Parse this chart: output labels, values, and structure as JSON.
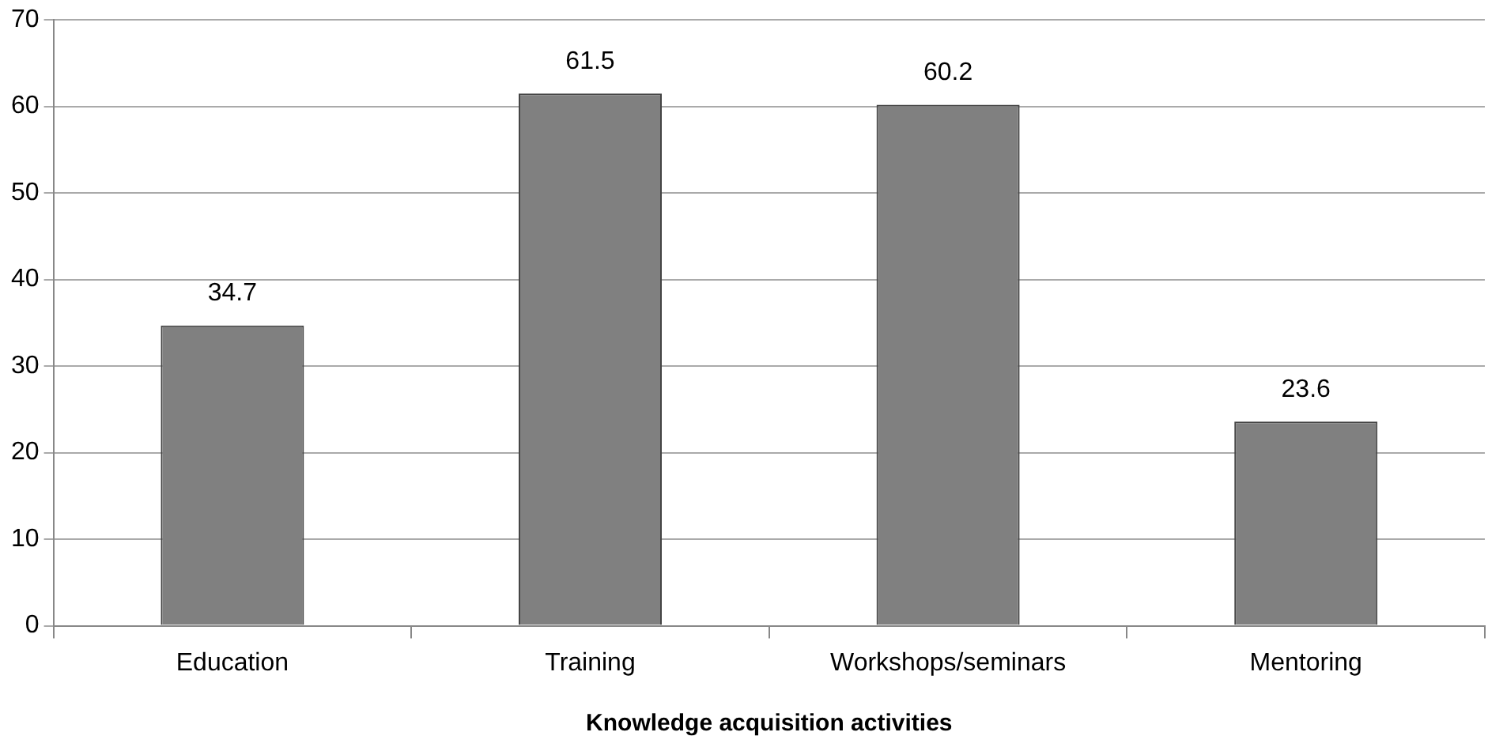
{
  "chart_data": {
    "type": "bar",
    "xlabel": "Knowledge acquisition activities",
    "categories": [
      "Education",
      "Training",
      "Workshops/seminars",
      "Mentoring"
    ],
    "values": [
      34.7,
      61.5,
      60.2,
      23.6
    ],
    "color": "#808080",
    "ylim": [
      0,
      70
    ],
    "yticks": [
      0,
      10,
      20,
      30,
      40,
      50,
      60,
      70
    ],
    "grid": "y",
    "legend": false,
    "data_labels": true
  }
}
